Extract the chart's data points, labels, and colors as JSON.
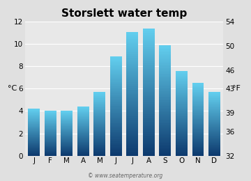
{
  "title": "Storslett water temp",
  "months": [
    "J",
    "F",
    "M",
    "A",
    "M",
    "J",
    "J",
    "A",
    "S",
    "O",
    "N",
    "D"
  ],
  "values_c": [
    4.2,
    4.0,
    4.0,
    4.4,
    5.7,
    8.9,
    11.1,
    11.4,
    9.9,
    7.6,
    6.5,
    5.7
  ],
  "ylim_c": [
    0,
    12
  ],
  "yticks_c": [
    0,
    2,
    4,
    6,
    8,
    10,
    12
  ],
  "ylim_f": [
    32,
    54
  ],
  "yticks_f": [
    32,
    36,
    39,
    43,
    46,
    50,
    54
  ],
  "ylabel_left": "°C",
  "ylabel_right": "°F",
  "bar_color_bottom": "#0d3a6e",
  "bar_color_top": "#62ceee",
  "bg_color": "#e0e0e0",
  "plot_bg_color": "#e8e8e8",
  "grid_color": "#ffffff",
  "title_fontsize": 11,
  "tick_fontsize": 7.5,
  "ylabel_fontsize": 8,
  "watermark": "© www.seatemperature.org",
  "watermark_fontsize": 5.5,
  "bar_width": 0.72
}
